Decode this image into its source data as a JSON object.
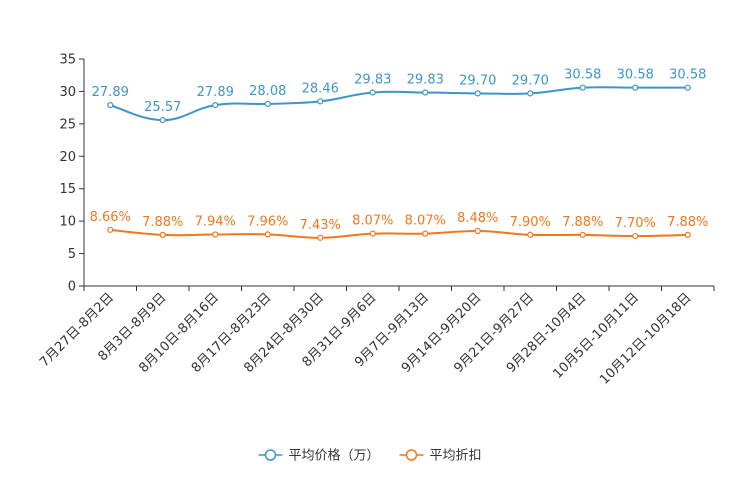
{
  "chart_data": {
    "type": "line",
    "title": "",
    "xlabel": "",
    "ylabel": "",
    "ylim": [
      0,
      35
    ],
    "yticks": [
      0,
      5,
      10,
      15,
      20,
      25,
      30,
      35
    ],
    "grid": false,
    "legend_position": "bottom-center",
    "categories": [
      "7月27日-8月2日",
      "8月3日-8月9日",
      "8月10日-8月16日",
      "8月17日-8月23日",
      "8月24日-8月30日",
      "8月31日-9月6日",
      "9月7日-9月13日",
      "9月14日-9月20日",
      "9月21日-9月27日",
      "9月28日-10月4日",
      "10月5日-10月11日",
      "10月12日-10月18日"
    ],
    "series": [
      {
        "name": "平均价格（万）",
        "color": "#3d96c9",
        "values": [
          27.89,
          25.57,
          27.89,
          28.08,
          28.46,
          29.83,
          29.83,
          29.7,
          29.7,
          30.58,
          30.58,
          30.58
        ],
        "labels": [
          "27.89",
          "25.57",
          "27.89",
          "28.08",
          "28.46",
          "29.83",
          "29.83",
          "29.70",
          "29.70",
          "30.58",
          "30.58",
          "30.58"
        ]
      },
      {
        "name": "平均折扣",
        "color": "#f0781e",
        "values": [
          8.66,
          7.88,
          7.94,
          7.96,
          7.43,
          8.07,
          8.07,
          8.48,
          7.9,
          7.88,
          7.7,
          7.88
        ],
        "labels": [
          "8.66%",
          "7.88%",
          "7.94%",
          "7.96%",
          "7.43%",
          "8.07%",
          "8.07%",
          "8.48%",
          "7.90%",
          "7.88%",
          "7.70%",
          "7.88%"
        ]
      }
    ]
  }
}
